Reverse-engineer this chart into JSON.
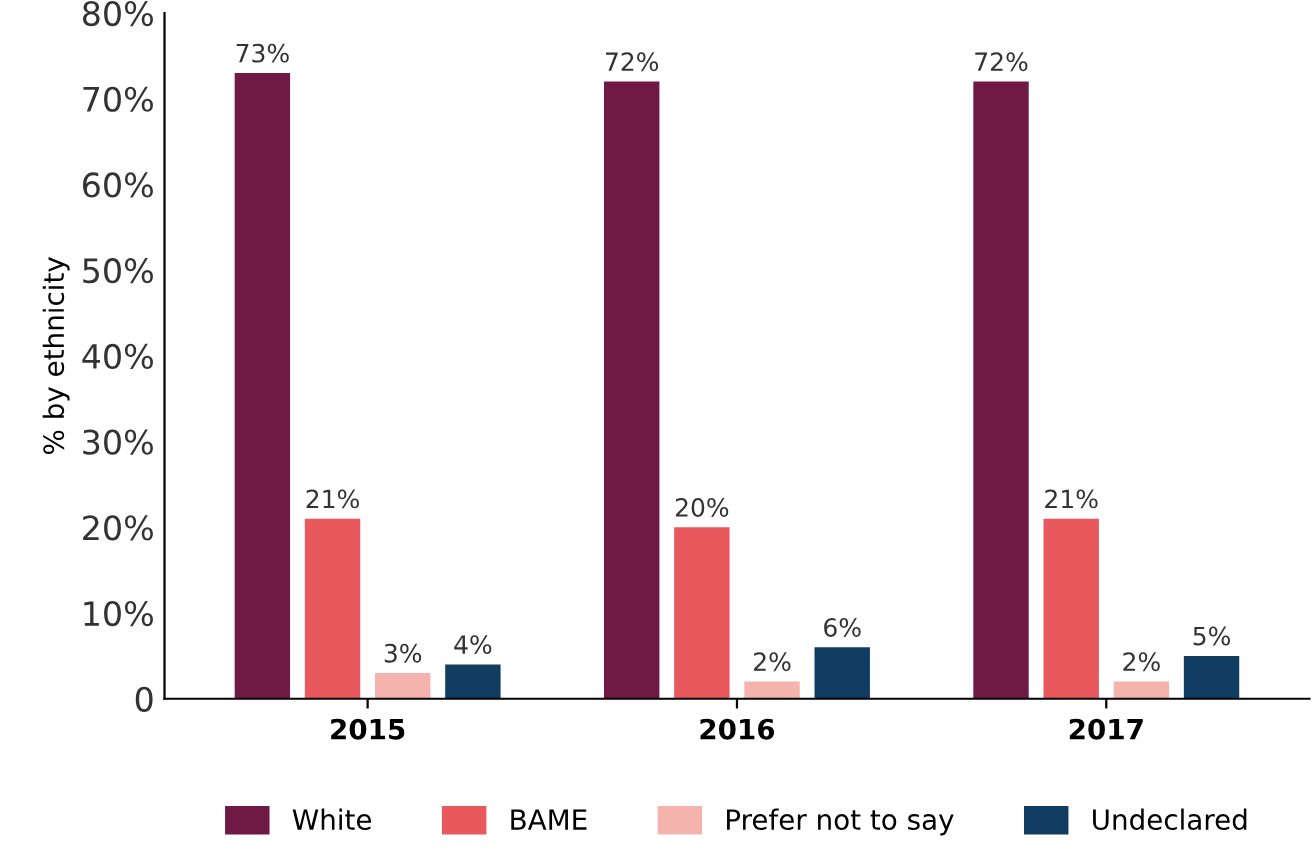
{
  "chart_data": {
    "type": "bar",
    "ylabel": "% by ethnicity",
    "categories": [
      "2015",
      "2016",
      "2017"
    ],
    "series": [
      {
        "name": "White",
        "color": "#6e1a45",
        "values": [
          73,
          72,
          72
        ],
        "value_labels": [
          "73%",
          "72%",
          "72%"
        ]
      },
      {
        "name": "BAME",
        "color": "#e8585d",
        "values": [
          21,
          20,
          21
        ],
        "value_labels": [
          "21%",
          "20%",
          "21%"
        ]
      },
      {
        "name": "Prefer not to say",
        "color": "#f5b3ad",
        "values": [
          3,
          2,
          2
        ],
        "value_labels": [
          "3%",
          "2%",
          "2%"
        ]
      },
      {
        "name": "Undeclared",
        "color": "#123d63",
        "values": [
          4,
          6,
          5
        ],
        "value_labels": [
          "4%",
          "6%",
          "5%"
        ]
      }
    ],
    "ylim": [
      0,
      80
    ],
    "yticks": [
      0,
      {
        "value": 10,
        "label": "10%"
      },
      {
        "value": 20,
        "label": "20%"
      },
      {
        "value": 30,
        "label": "30%"
      },
      {
        "value": 40,
        "label": "40%"
      },
      {
        "value": 50,
        "label": "50%"
      },
      {
        "value": 60,
        "label": "60%"
      },
      {
        "value": 70,
        "label": "70%"
      },
      {
        "value": 80,
        "label": "80%"
      }
    ],
    "grid": false,
    "legend": "bottom"
  }
}
